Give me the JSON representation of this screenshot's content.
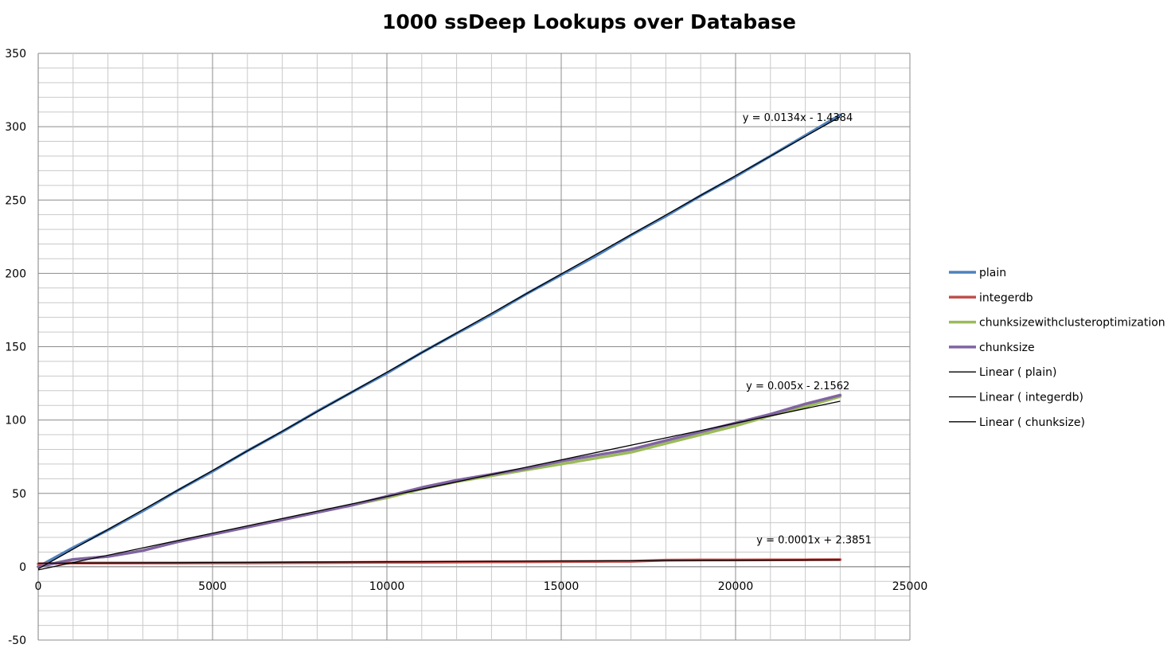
{
  "chart_data": {
    "type": "line",
    "title": "1000 ssDeep Lookups over Database",
    "xlabel": "",
    "ylabel": "",
    "xlim": [
      0,
      25000
    ],
    "ylim": [
      -50,
      350
    ],
    "x_major_ticks": [
      0,
      5000,
      10000,
      15000,
      20000,
      25000
    ],
    "x_minor_step": 1000,
    "y_major_ticks": [
      -50,
      0,
      50,
      100,
      150,
      200,
      250,
      300,
      350
    ],
    "y_minor_step": 10,
    "grid": true,
    "legend_position": "right",
    "series": [
      {
        "name": "plain",
        "color": "#4f81bd",
        "x": [
          0,
          1000,
          2000,
          3000,
          4000,
          5000,
          6000,
          7000,
          8000,
          9000,
          10000,
          11000,
          12000,
          13000,
          14000,
          15000,
          16000,
          17000,
          18000,
          19000,
          20000,
          21000,
          22000,
          23000
        ],
        "y": [
          0,
          13,
          25,
          38,
          52,
          65,
          79,
          92,
          106,
          119,
          132,
          146,
          159,
          172,
          186,
          199,
          212,
          226,
          239,
          253,
          266,
          280,
          294,
          308
        ]
      },
      {
        "name": "integerdb",
        "color": "#c0504d",
        "x": [
          0,
          1000,
          2000,
          3000,
          4000,
          5000,
          6000,
          7000,
          8000,
          9000,
          10000,
          11000,
          12000,
          13000,
          14000,
          15000,
          16000,
          17000,
          18000,
          19000,
          20000,
          21000,
          22000,
          23000
        ],
        "y": [
          2,
          2.5,
          2.5,
          2.5,
          2.5,
          2.6,
          2.6,
          2.7,
          2.8,
          2.9,
          3,
          3.1,
          3.2,
          3.3,
          3.4,
          3.5,
          3.6,
          3.7,
          4.5,
          4.6,
          4.6,
          4.7,
          4.7,
          4.8
        ]
      },
      {
        "name": "chunksizewithclusteroptimization",
        "color": "#9bbb59",
        "x": [
          0,
          1000,
          2000,
          3000,
          4000,
          5000,
          6000,
          7000,
          8000,
          9000,
          10000,
          11000,
          12000,
          13000,
          14000,
          15000,
          16000,
          17000,
          18000,
          19000,
          20000,
          21000,
          22000,
          23000
        ],
        "y": [
          0,
          5,
          7,
          11,
          17,
          22,
          27,
          32,
          37,
          42,
          47,
          53,
          58,
          62,
          66,
          70,
          74,
          78,
          84,
          90,
          96,
          103,
          109,
          116
        ]
      },
      {
        "name": "chunksize",
        "color": "#8064a2",
        "x": [
          0,
          1000,
          2000,
          3000,
          4000,
          5000,
          6000,
          7000,
          8000,
          9000,
          10000,
          11000,
          12000,
          13000,
          14000,
          15000,
          16000,
          17000,
          18000,
          19000,
          20000,
          21000,
          22000,
          23000
        ],
        "y": [
          0,
          5,
          7,
          11,
          17,
          22,
          27,
          32,
          37,
          42,
          48,
          54,
          59,
          63,
          67,
          72,
          76,
          80,
          86,
          92,
          98,
          104,
          111,
          117
        ]
      }
    ],
    "trendlines": [
      {
        "name": "Linear ( plain)",
        "color": "#000000",
        "slope": 0.0134,
        "intercept": -1.4384,
        "x_range": [
          0,
          23000
        ],
        "equation": "y = 0.0134x - 1.4384",
        "label_at": [
          20200,
          304
        ]
      },
      {
        "name": "Linear ( integerdb)",
        "color": "#000000",
        "slope": 0.0001,
        "intercept": 2.3851,
        "x_range": [
          0,
          23000
        ],
        "equation": "y = 0.0001x + 2.3851",
        "label_at": [
          20600,
          16
        ]
      },
      {
        "name": "Linear ( chunksize)",
        "color": "#000000",
        "slope": 0.005,
        "intercept": -2.1562,
        "x_range": [
          0,
          23000
        ],
        "equation": "y = 0.005x - 2.1562",
        "label_at": [
          20300,
          121
        ]
      }
    ],
    "legend": [
      {
        "label": "plain",
        "color": "#4f81bd",
        "style": "thick"
      },
      {
        "label": "integerdb",
        "color": "#c0504d",
        "style": "thick"
      },
      {
        "label": "chunksizewithclusteroptimization",
        "color": "#9bbb59",
        "style": "thick"
      },
      {
        "label": "chunksize",
        "color": "#8064a2",
        "style": "thick"
      },
      {
        "label": "Linear ( plain)",
        "color": "#000000",
        "style": "thin"
      },
      {
        "label": "Linear ( integerdb)",
        "color": "#000000",
        "style": "thin"
      },
      {
        "label": "Linear ( chunksize)",
        "color": "#000000",
        "style": "thin"
      }
    ]
  }
}
